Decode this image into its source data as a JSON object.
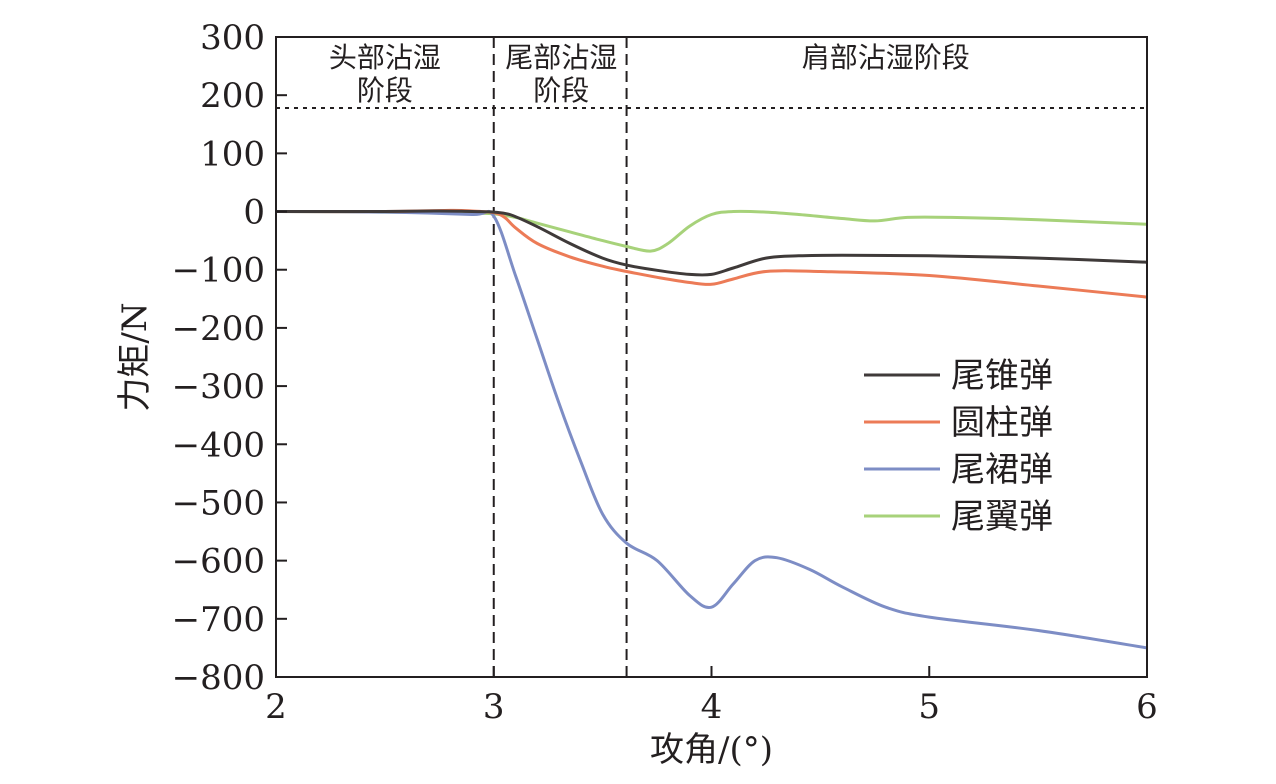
{
  "chart_data": {
    "type": "line",
    "xlabel": "攻角/(°)",
    "ylabel": "力矩/N",
    "xlim": [
      2,
      6
    ],
    "ylim": [
      -800,
      300
    ],
    "xticks": [
      2,
      3,
      4,
      5,
      6
    ],
    "yticks": [
      300,
      200,
      100,
      0,
      -100,
      -200,
      -300,
      -400,
      -500,
      -600,
      -700,
      -800
    ],
    "xtick_labels": [
      "2",
      "3",
      "4",
      "5",
      "6"
    ],
    "ytick_labels": [
      "300",
      "200",
      "100",
      "0",
      "−100",
      "−200",
      "−300",
      "−400",
      "−500",
      "−600",
      "−700",
      "−800"
    ],
    "grid": false,
    "legend_position": "center-right",
    "stage_dividers_x": [
      3,
      3.61
    ],
    "threshold_y": 178,
    "stage_labels": [
      {
        "lines": [
          "头部沾湿",
          "阶段"
        ],
        "x_center": 2.5
      },
      {
        "lines": [
          "尾部沾湿",
          "阶段"
        ],
        "x_center": 3.31
      },
      {
        "lines": [
          "肩部沾湿阶段"
        ],
        "x_center": 4.8
      }
    ],
    "series": [
      {
        "name": "尾锥弹",
        "color": "#3f3a39",
        "x": [
          2.0,
          2.5,
          2.75,
          2.9,
          3.0,
          3.08,
          3.2,
          3.35,
          3.5,
          3.61,
          3.75,
          3.9,
          4.0,
          4.1,
          4.25,
          4.4,
          4.6,
          5.0,
          5.5,
          6.0
        ],
        "y": [
          0,
          0,
          1,
          0,
          -1,
          -6,
          -26,
          -55,
          -80,
          -92,
          -101,
          -108,
          -108,
          -97,
          -80,
          -76,
          -75,
          -76,
          -80,
          -87
        ]
      },
      {
        "name": "圆柱弹",
        "color": "#ec7b57",
        "x": [
          2.0,
          2.5,
          2.8,
          2.9,
          3.0,
          3.05,
          3.1,
          3.2,
          3.35,
          3.5,
          3.61,
          3.75,
          3.9,
          4.0,
          4.1,
          4.25,
          4.5,
          5.0,
          5.5,
          6.0
        ],
        "y": [
          0,
          0,
          2,
          1,
          -2,
          -10,
          -28,
          -55,
          -78,
          -94,
          -103,
          -113,
          -122,
          -125,
          -116,
          -103,
          -103,
          -110,
          -128,
          -147
        ]
      },
      {
        "name": "尾裙弹",
        "color": "#7d8dc5",
        "x": [
          2.0,
          2.5,
          2.9,
          3.0,
          3.1,
          3.2,
          3.3,
          3.4,
          3.5,
          3.61,
          3.75,
          3.9,
          4.0,
          4.1,
          4.2,
          4.3,
          4.45,
          4.6,
          4.8,
          5.0,
          5.5,
          6.0
        ],
        "y": [
          0,
          -1,
          -5,
          -8,
          -110,
          -220,
          -330,
          -430,
          -520,
          -570,
          -600,
          -660,
          -680,
          -640,
          -600,
          -595,
          -615,
          -645,
          -680,
          -697,
          -720,
          -750
        ]
      },
      {
        "name": "尾翼弹",
        "color": "#a7d27a",
        "x": [
          2.0,
          2.5,
          2.9,
          3.0,
          3.1,
          3.2,
          3.35,
          3.5,
          3.61,
          3.72,
          3.8,
          3.9,
          4.0,
          4.1,
          4.25,
          4.4,
          4.6,
          4.75,
          4.9,
          5.1,
          5.5,
          6.0
        ],
        "y": [
          0,
          -1,
          -3,
          -4,
          -10,
          -20,
          -35,
          -50,
          -60,
          -68,
          -55,
          -25,
          -5,
          0,
          -1,
          -5,
          -12,
          -16,
          -10,
          -10,
          -14,
          -22
        ]
      }
    ]
  }
}
